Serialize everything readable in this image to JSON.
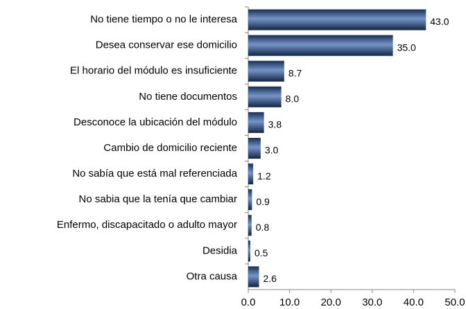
{
  "chart_data": {
    "type": "barh",
    "categories": [
      "No tiene tiempo o no le interesa",
      "Desea conservar ese domicilio",
      "El horario del módulo es insuficiente",
      "No tiene documentos",
      "Desconoce la ubicación del módulo",
      "Cambio de domicilio reciente",
      "No sabía que está mal referenciada",
      "No sabia que  la tenía que cambiar",
      "Enfermo, discapacitado o adulto mayor",
      "Desidia",
      "Otra causa"
    ],
    "values": [
      43.0,
      35.0,
      8.7,
      8.0,
      3.8,
      3.0,
      1.2,
      0.9,
      0.8,
      0.5,
      2.6
    ],
    "value_labels": [
      "43.0",
      "35.0",
      "8.7",
      "8.0",
      "3.8",
      "3.0",
      "1.2",
      "0.9",
      "0.8",
      "0.5",
      "2.6"
    ],
    "color": "#2a5caa",
    "xlim": [
      0,
      50
    ],
    "xticks": [
      {
        "value": 0,
        "label": "0.0"
      },
      {
        "value": 10,
        "label": "10.0"
      },
      {
        "value": 20,
        "label": "20.0"
      },
      {
        "value": 30,
        "label": "30.0"
      },
      {
        "value": 40,
        "label": "40.0"
      },
      {
        "value": 50,
        "label": "50.0"
      }
    ]
  }
}
